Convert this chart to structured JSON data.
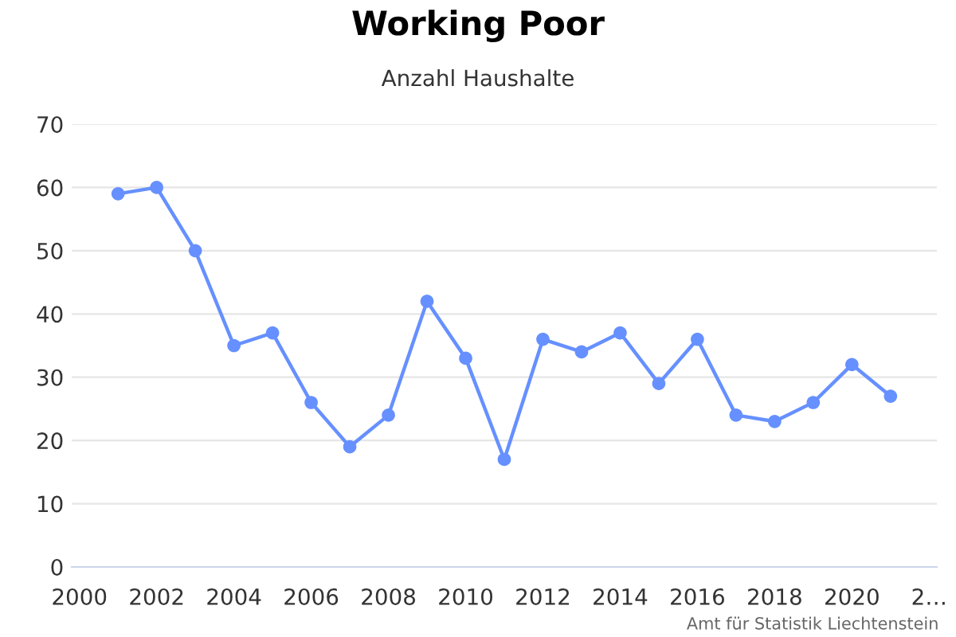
{
  "chart_data": {
    "type": "line",
    "title": "Working Poor",
    "subtitle": "Anzahl Haushalte",
    "x": [
      2001,
      2002,
      2003,
      2004,
      2005,
      2006,
      2007,
      2008,
      2009,
      2010,
      2011,
      2012,
      2013,
      2014,
      2015,
      2016,
      2017,
      2018,
      2019,
      2020,
      2021
    ],
    "series": [
      {
        "color": "#6690ff",
        "values": [
          59,
          60,
          50,
          35,
          37,
          26,
          19,
          24,
          42,
          33,
          17,
          36,
          34,
          37,
          29,
          36,
          24,
          23,
          26,
          32,
          27
        ]
      }
    ],
    "xlim": [
      1999.8,
      2022.2
    ],
    "xticks": [
      2000,
      2002,
      2004,
      2006,
      2008,
      2010,
      2012,
      2014,
      2016,
      2018,
      2020,
      {
        "value": 2022,
        "label": "2…"
      }
    ],
    "ylim": [
      0,
      70
    ],
    "yticks": [
      0,
      10,
      20,
      30,
      40,
      50,
      60,
      70
    ],
    "grid": "y",
    "marker": "circle",
    "line_style": "solid",
    "legend": false,
    "annotations": [
      "Amt für Statistik Liechtenstein"
    ]
  }
}
